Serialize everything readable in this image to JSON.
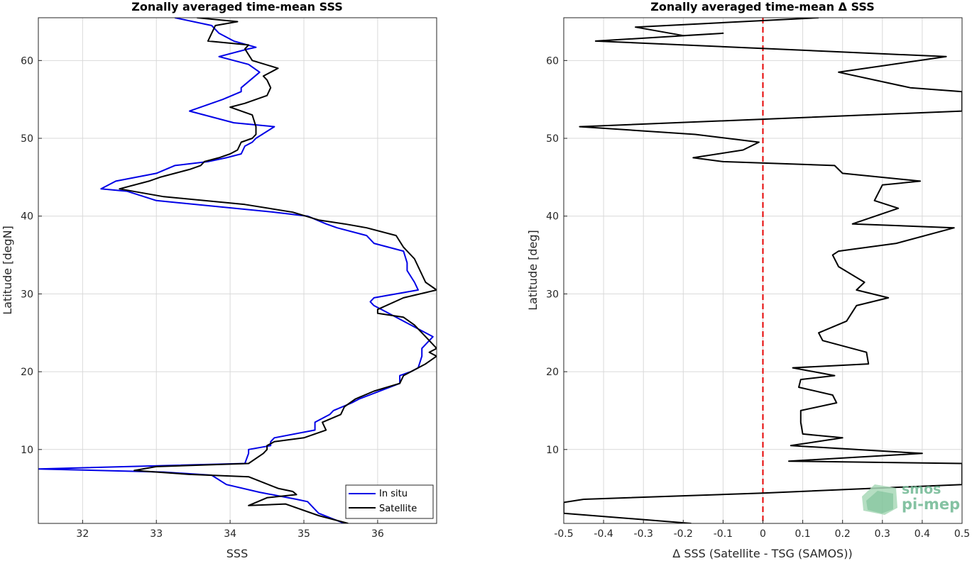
{
  "chart_data": [
    {
      "type": "line",
      "title": "Zonally averaged time-mean SSS",
      "xlabel": "SSS",
      "ylabel": "Latitude [degN]",
      "xlim": [
        31.4,
        36.8
      ],
      "ylim": [
        0.5,
        65.5
      ],
      "xticks": [
        32,
        33,
        34,
        35,
        36
      ],
      "yticks": [
        10,
        20,
        30,
        40,
        50,
        60
      ],
      "grid": true,
      "legend_position": "bottom-right",
      "series": [
        {
          "name": "In situ",
          "color": "#0000e6",
          "points": [
            [
              35.55,
              0.5
            ],
            [
              35.2,
              1.8
            ],
            [
              35.1,
              2.8
            ],
            [
              35.05,
              3.3
            ],
            [
              34.9,
              3.6
            ],
            [
              34.4,
              4.5
            ],
            [
              33.95,
              5.5
            ],
            [
              33.75,
              6.7
            ],
            [
              33.1,
              7.1
            ],
            [
              31.4,
              7.5
            ],
            [
              34.2,
              8.2
            ],
            [
              34.25,
              9.5
            ],
            [
              34.25,
              10.0
            ],
            [
              34.55,
              10.5
            ],
            [
              34.55,
              11.0
            ],
            [
              34.6,
              11.5
            ],
            [
              35.15,
              12.5
            ],
            [
              35.15,
              13.5
            ],
            [
              35.35,
              14.5
            ],
            [
              35.4,
              15.0
            ],
            [
              35.65,
              16.0
            ],
            [
              35.75,
              16.5
            ],
            [
              36.3,
              18.5
            ],
            [
              36.3,
              19.5
            ],
            [
              36.45,
              20.0
            ],
            [
              36.55,
              20.5
            ],
            [
              36.6,
              22.0
            ],
            [
              36.6,
              23.0
            ],
            [
              36.75,
              24.5
            ],
            [
              36.45,
              26.0
            ],
            [
              36.15,
              27.5
            ],
            [
              36.05,
              28.0
            ],
            [
              35.95,
              28.5
            ],
            [
              35.9,
              29.0
            ],
            [
              35.95,
              29.5
            ],
            [
              36.55,
              30.5
            ],
            [
              36.5,
              31.5
            ],
            [
              36.4,
              33.0
            ],
            [
              36.4,
              34.0
            ],
            [
              36.35,
              35.5
            ],
            [
              35.95,
              36.5
            ],
            [
              35.85,
              37.5
            ],
            [
              35.45,
              38.5
            ],
            [
              35.3,
              39.0
            ],
            [
              35.05,
              40.0
            ],
            [
              34.6,
              40.5
            ],
            [
              33.0,
              42.0
            ],
            [
              32.6,
              43.2
            ],
            [
              32.25,
              43.5
            ],
            [
              32.45,
              44.5
            ],
            [
              33.0,
              45.5
            ],
            [
              33.25,
              46.5
            ],
            [
              33.7,
              47.0
            ],
            [
              33.95,
              47.5
            ],
            [
              34.15,
              48.0
            ],
            [
              34.2,
              49.0
            ],
            [
              34.3,
              49.5
            ],
            [
              34.35,
              50.0
            ],
            [
              34.6,
              51.5
            ],
            [
              34.05,
              52.0
            ],
            [
              33.45,
              53.5
            ],
            [
              33.9,
              55.0
            ],
            [
              34.15,
              56.0
            ],
            [
              34.15,
              56.5
            ],
            [
              34.4,
              58.5
            ],
            [
              34.25,
              59.5
            ],
            [
              33.85,
              60.5
            ],
            [
              34.25,
              61.5
            ],
            [
              34.35,
              61.7
            ],
            [
              34.05,
              62.5
            ],
            [
              33.85,
              63.5
            ],
            [
              33.75,
              64.5
            ],
            [
              33.25,
              65.5
            ]
          ]
        },
        {
          "name": "Satellite",
          "color": "#000000",
          "points": [
            [
              35.6,
              0.5
            ],
            [
              35.2,
              1.5
            ],
            [
              34.75,
              3.0
            ],
            [
              34.25,
              2.8
            ],
            [
              34.5,
              3.8
            ],
            [
              34.9,
              4.2
            ],
            [
              34.85,
              4.6
            ],
            [
              34.65,
              5.0
            ],
            [
              34.25,
              6.5
            ],
            [
              33.45,
              6.8
            ],
            [
              32.7,
              7.3
            ],
            [
              33.0,
              7.8
            ],
            [
              34.25,
              8.2
            ],
            [
              34.45,
              9.5
            ],
            [
              34.5,
              10.0
            ],
            [
              34.5,
              10.5
            ],
            [
              34.6,
              11.0
            ],
            [
              35.0,
              11.5
            ],
            [
              35.3,
              12.5
            ],
            [
              35.25,
              13.5
            ],
            [
              35.5,
              14.5
            ],
            [
              35.55,
              15.5
            ],
            [
              35.7,
              16.5
            ],
            [
              35.95,
              17.5
            ],
            [
              36.3,
              18.5
            ],
            [
              36.35,
              19.5
            ],
            [
              36.65,
              21.0
            ],
            [
              36.8,
              22.0
            ],
            [
              36.7,
              22.5
            ],
            [
              36.8,
              23.0
            ],
            [
              36.7,
              24.0
            ],
            [
              36.5,
              26.0
            ],
            [
              36.35,
              27.0
            ],
            [
              36.0,
              27.5
            ],
            [
              36.0,
              28.0
            ],
            [
              36.35,
              29.5
            ],
            [
              36.8,
              30.5
            ],
            [
              36.65,
              31.5
            ],
            [
              36.6,
              32.5
            ],
            [
              36.5,
              34.5
            ],
            [
              36.35,
              36.0
            ],
            [
              36.25,
              37.5
            ],
            [
              35.85,
              38.5
            ],
            [
              35.55,
              39.0
            ],
            [
              35.2,
              39.5
            ],
            [
              34.85,
              40.5
            ],
            [
              34.2,
              41.5
            ],
            [
              33.1,
              42.5
            ],
            [
              32.5,
              43.5
            ],
            [
              32.9,
              44.5
            ],
            [
              33.05,
              45.0
            ],
            [
              33.45,
              46.0
            ],
            [
              33.6,
              46.5
            ],
            [
              33.65,
              47.0
            ],
            [
              33.85,
              47.5
            ],
            [
              34.0,
              48.0
            ],
            [
              34.1,
              48.5
            ],
            [
              34.15,
              49.5
            ],
            [
              34.3,
              50.0
            ],
            [
              34.35,
              50.5
            ],
            [
              34.35,
              51.5
            ],
            [
              34.3,
              53.0
            ],
            [
              34.0,
              54.0
            ],
            [
              34.2,
              54.5
            ],
            [
              34.5,
              55.5
            ],
            [
              34.55,
              56.5
            ],
            [
              34.5,
              57.5
            ],
            [
              34.45,
              58.0
            ],
            [
              34.65,
              59.0
            ],
            [
              34.3,
              60.0
            ],
            [
              34.2,
              61.5
            ],
            [
              34.25,
              62.0
            ],
            [
              33.7,
              62.5
            ],
            [
              33.75,
              63.5
            ],
            [
              33.8,
              64.5
            ],
            [
              34.1,
              65.0
            ],
            [
              33.55,
              65.5
            ]
          ]
        }
      ]
    },
    {
      "type": "line",
      "title": "Zonally averaged time-mean Δ SSS",
      "xlabel": "Δ SSS (Satellite - TSG (SAMOS))",
      "ylabel": "Latitude [deg]",
      "xlim": [
        -0.5,
        0.5
      ],
      "ylim": [
        0.5,
        65.5
      ],
      "xticks": [
        -0.5,
        -0.4,
        -0.3,
        -0.2,
        -0.1,
        0,
        0.1,
        0.2,
        0.3,
        0.4,
        0.5
      ],
      "xtick_labels": [
        "-0.5",
        "-0.4",
        "-0.3",
        "-0.2",
        "-0.1",
        "0",
        "0.1",
        "0.2",
        "0.3",
        "0.4",
        "0.5"
      ],
      "yticks": [
        10,
        20,
        30,
        40,
        50,
        60
      ],
      "grid": true,
      "reference_line": {
        "x": 0,
        "color": "#e60000",
        "style": "dashed"
      },
      "series": [
        {
          "name": "",
          "color": "#000000",
          "points": [
            [
              -0.18,
              0.5
            ],
            [
              -0.5,
              1.8
            ],
            [
              -0.5,
              2.2
            ],
            [
              -0.5,
              3.2
            ],
            [
              -0.45,
              3.6
            ],
            [
              0.0,
              4.4
            ],
            [
              0.5,
              5.5
            ],
            [
              0.5,
              7.5
            ],
            [
              0.5,
              8.2
            ],
            [
              0.065,
              8.5
            ],
            [
              0.4,
              9.5
            ],
            [
              0.07,
              10.5
            ],
            [
              0.2,
              11.5
            ],
            [
              0.1,
              12.0
            ],
            [
              0.095,
              13.5
            ],
            [
              0.095,
              15.0
            ],
            [
              0.185,
              16.0
            ],
            [
              0.175,
              17.0
            ],
            [
              0.09,
              18.0
            ],
            [
              0.095,
              19.0
            ],
            [
              0.18,
              19.5
            ],
            [
              0.075,
              20.5
            ],
            [
              0.265,
              21.0
            ],
            [
              0.26,
              22.5
            ],
            [
              0.15,
              24.0
            ],
            [
              0.14,
              25.0
            ],
            [
              0.21,
              26.5
            ],
            [
              0.235,
              28.5
            ],
            [
              0.315,
              29.5
            ],
            [
              0.235,
              30.5
            ],
            [
              0.255,
              31.5
            ],
            [
              0.19,
              33.5
            ],
            [
              0.175,
              35.0
            ],
            [
              0.19,
              35.5
            ],
            [
              0.335,
              36.5
            ],
            [
              0.48,
              38.5
            ],
            [
              0.225,
              39.0
            ],
            [
              0.34,
              41.0
            ],
            [
              0.28,
              42.0
            ],
            [
              0.3,
              44.0
            ],
            [
              0.395,
              44.5
            ],
            [
              0.2,
              45.5
            ],
            [
              0.18,
              46.5
            ],
            [
              -0.1,
              47.0
            ],
            [
              -0.175,
              47.5
            ],
            [
              -0.05,
              48.5
            ],
            [
              -0.01,
              49.5
            ],
            [
              -0.17,
              50.5
            ],
            [
              -0.46,
              51.5
            ],
            [
              0.5,
              53.5
            ],
            [
              0.5,
              56.0
            ],
            [
              0.37,
              56.5
            ],
            [
              0.19,
              58.5
            ],
            [
              0.46,
              60.5
            ],
            [
              -0.42,
              62.5
            ],
            [
              -0.1,
              63.5
            ],
            [
              -0.2,
              63.2
            ],
            [
              -0.32,
              64.3
            ],
            [
              0.14,
              65.5
            ]
          ]
        }
      ]
    }
  ],
  "watermark": {
    "line1": "smos",
    "line2": "pi-mep",
    "color": "#6fb892"
  }
}
